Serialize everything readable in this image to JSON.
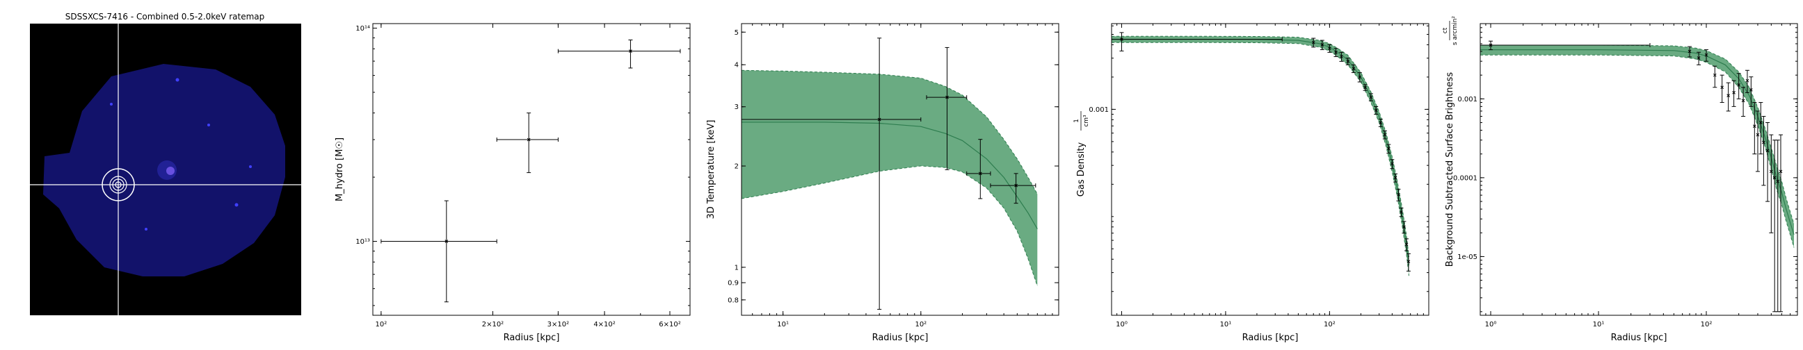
{
  "image_panel": {
    "title": "SDSSXCS-7416 - Combined 0.5-2.0keV ratemap",
    "colors": {
      "background": "#000000",
      "emission": "#1a1a7a",
      "crosshair": "#ffffff"
    }
  },
  "chart_data": [
    {
      "type": "scatter",
      "xlabel": "Radius [kpc]",
      "ylabel": "M_hydro [M☉]",
      "xscale": "log",
      "yscale": "log",
      "xlim": [
        95,
        680
      ],
      "ylim": [
        4500000000000.0,
        105000000000000.0
      ],
      "xticks": [
        {
          "v": 100,
          "label": "10²"
        },
        {
          "v": 200,
          "label": "2×10²"
        },
        {
          "v": 300,
          "label": "3×10²"
        },
        {
          "v": 400,
          "label": "4×10²"
        },
        {
          "v": 600,
          "label": "6×10²"
        }
      ],
      "yticks": [
        {
          "v": 10000000000000.0,
          "label": "10¹³"
        },
        {
          "v": 100000000000000.0,
          "label": "10¹⁴"
        }
      ],
      "points": [
        {
          "x": 150,
          "y": 10000000000000.0,
          "xerr": [
            100,
            205
          ],
          "yerr": [
            5200000000000.0,
            15500000000000.0
          ]
        },
        {
          "x": 250,
          "y": 30000000000000.0,
          "xerr": [
            205,
            300
          ],
          "yerr": [
            21000000000000.0,
            40000000000000.0
          ]
        },
        {
          "x": 470,
          "y": 78000000000000.0,
          "xerr": [
            300,
            640
          ],
          "yerr": [
            65000000000000.0,
            88000000000000.0
          ]
        }
      ]
    },
    {
      "type": "line",
      "xlabel": "Radius [kpc]",
      "ylabel": "3D Temperature [keV]",
      "xscale": "log",
      "yscale": "log",
      "xlim": [
        5,
        1000
      ],
      "ylim": [
        0.72,
        5.3
      ],
      "xticks": [
        {
          "v": 10,
          "label": "10¹"
        },
        {
          "v": 100,
          "label": "10²"
        }
      ],
      "yticks": [
        {
          "v": 0.8,
          "label": "0.8"
        },
        {
          "v": 0.9,
          "label": "0.9"
        },
        {
          "v": 1,
          "label": "1"
        },
        {
          "v": 2,
          "label": "2"
        },
        {
          "v": 3,
          "label": "3"
        },
        {
          "v": 4,
          "label": "4"
        },
        {
          "v": 5,
          "label": "5"
        }
      ],
      "model": {
        "x": [
          5,
          10,
          20,
          50,
          100,
          150,
          200,
          300,
          400,
          500,
          600,
          700
        ],
        "y": [
          2.7,
          2.7,
          2.7,
          2.68,
          2.62,
          2.5,
          2.38,
          2.1,
          1.85,
          1.62,
          1.45,
          1.3
        ],
        "lower": [
          1.6,
          1.68,
          1.78,
          1.93,
          2.0,
          1.98,
          1.92,
          1.72,
          1.5,
          1.28,
          1.06,
          0.88
        ],
        "upper": [
          3.85,
          3.83,
          3.8,
          3.75,
          3.65,
          3.45,
          3.25,
          2.8,
          2.4,
          2.1,
          1.85,
          1.65
        ]
      },
      "points": [
        {
          "x": 50,
          "y": 2.75,
          "xerr": [
            5,
            100
          ],
          "yerr": [
            0.75,
            4.8
          ]
        },
        {
          "x": 155,
          "y": 3.2,
          "xerr": [
            110,
            215
          ],
          "yerr": [
            1.95,
            4.5
          ]
        },
        {
          "x": 270,
          "y": 1.9,
          "xerr": [
            215,
            320
          ],
          "yerr": [
            1.6,
            2.4
          ]
        },
        {
          "x": 490,
          "y": 1.75,
          "xerr": [
            320,
            680
          ],
          "yerr": [
            1.55,
            1.9
          ]
        }
      ]
    },
    {
      "type": "line",
      "xlabel": "Radius [kpc]",
      "ylabel": "Gas Density",
      "ylabel_unit_num": "1",
      "ylabel_unit_den": "cm³",
      "xscale": "log",
      "yscale": "log",
      "xlim": [
        0.8,
        900
      ],
      "ylim": [
        1.2e-05,
        0.0063
      ],
      "xticks": [
        {
          "v": 1,
          "label": "10⁰"
        },
        {
          "v": 10,
          "label": "10¹"
        },
        {
          "v": 100,
          "label": "10²"
        }
      ],
      "yticks": [
        {
          "v": 0.001,
          "label": "0.001"
        }
      ],
      "model": {
        "x": [
          0.8,
          1,
          5,
          20,
          50,
          80,
          100,
          120,
          150,
          200,
          250,
          300,
          350,
          400,
          450,
          500,
          550,
          580
        ],
        "y": [
          0.0045,
          0.0045,
          0.0045,
          0.00448,
          0.0044,
          0.0041,
          0.0038,
          0.0034,
          0.0029,
          0.002,
          0.0013,
          0.00085,
          0.00052,
          0.00031,
          0.00018,
          0.0001,
          5.5e-05,
          3.5e-05
        ],
        "lower": [
          0.0042,
          0.0042,
          0.0042,
          0.00418,
          0.0041,
          0.0038,
          0.0035,
          0.0031,
          0.0026,
          0.0018,
          0.00115,
          0.00075,
          0.00045,
          0.00026,
          0.00015,
          8.2e-05,
          4.4e-05,
          2.8e-05
        ],
        "upper": [
          0.0048,
          0.0048,
          0.0048,
          0.00478,
          0.0047,
          0.0044,
          0.0041,
          0.0037,
          0.0032,
          0.0022,
          0.00145,
          0.00095,
          0.0006,
          0.00036,
          0.00021,
          0.00012,
          6.6e-05,
          4.2e-05
        ]
      },
      "points": [
        {
          "x": 1,
          "y": 0.0045,
          "xerr": [
            0.8,
            35
          ],
          "yerr": [
            0.0035,
            0.0052
          ]
        },
        {
          "x": 70,
          "y": 0.0042,
          "yerr": [
            0.0038,
            0.0046
          ]
        },
        {
          "x": 85,
          "y": 0.004,
          "yerr": [
            0.0036,
            0.0044
          ]
        },
        {
          "x": 100,
          "y": 0.0037,
          "yerr": [
            0.0034,
            0.004
          ]
        },
        {
          "x": 115,
          "y": 0.0034,
          "yerr": [
            0.0031,
            0.0037
          ]
        },
        {
          "x": 130,
          "y": 0.0031,
          "yerr": [
            0.0028,
            0.0034
          ]
        },
        {
          "x": 150,
          "y": 0.0028,
          "yerr": [
            0.0026,
            0.003
          ]
        },
        {
          "x": 170,
          "y": 0.0024,
          "yerr": [
            0.0022,
            0.0026
          ]
        },
        {
          "x": 195,
          "y": 0.002,
          "yerr": [
            0.0018,
            0.0022
          ]
        },
        {
          "x": 220,
          "y": 0.0016,
          "yerr": [
            0.0015,
            0.0017
          ]
        },
        {
          "x": 250,
          "y": 0.0013,
          "yerr": [
            0.0012,
            0.0014
          ]
        },
        {
          "x": 280,
          "y": 0.00098,
          "yerr": [
            0.0009,
            0.00106
          ]
        },
        {
          "x": 310,
          "y": 0.00075,
          "yerr": [
            0.00069,
            0.00081
          ]
        },
        {
          "x": 340,
          "y": 0.00058,
          "yerr": [
            0.00053,
            0.00063
          ]
        },
        {
          "x": 370,
          "y": 0.00043,
          "yerr": [
            0.00039,
            0.00047
          ]
        },
        {
          "x": 400,
          "y": 0.00031,
          "yerr": [
            0.00028,
            0.00034
          ]
        },
        {
          "x": 430,
          "y": 0.00023,
          "yerr": [
            0.00021,
            0.00025
          ]
        },
        {
          "x": 460,
          "y": 0.00016,
          "yerr": [
            0.00014,
            0.00018
          ]
        },
        {
          "x": 490,
          "y": 0.00011,
          "yerr": [
            0.0001,
            0.00012
          ]
        },
        {
          "x": 520,
          "y": 8e-05,
          "yerr": [
            7e-05,
            9e-05
          ]
        },
        {
          "x": 550,
          "y": 5.5e-05,
          "yerr": [
            4.8e-05,
            6.2e-05
          ]
        },
        {
          "x": 575,
          "y": 3.8e-05,
          "yerr": [
            3.1e-05,
            4.5e-05
          ]
        }
      ]
    },
    {
      "type": "line",
      "xlabel": "Radius [kpc]",
      "ylabel": "Background Subtracted Surface Brightness",
      "ylabel_unit_num": "ct",
      "ylabel_unit_den": "s arcmin²",
      "xscale": "log",
      "yscale": "log",
      "xlim": [
        0.8,
        700
      ],
      "ylim": [
        1.8e-06,
        0.009
      ],
      "xticks": [
        {
          "v": 1,
          "label": "10⁰"
        },
        {
          "v": 10,
          "label": "10¹"
        },
        {
          "v": 100,
          "label": "10²"
        }
      ],
      "yticks": [
        {
          "v": 0.001,
          "label": "0.001"
        },
        {
          "v": 0.0001,
          "label": "0.0001"
        },
        {
          "v": 1e-05,
          "label": "1e-05"
        }
      ],
      "model": {
        "x": [
          0.8,
          1,
          10,
          50,
          80,
          100,
          150,
          200,
          250,
          300,
          350,
          400,
          450,
          500,
          550,
          600,
          650
        ],
        "y": [
          0.0042,
          0.0042,
          0.0042,
          0.0041,
          0.0038,
          0.0035,
          0.0027,
          0.0018,
          0.0011,
          0.0006,
          0.00033,
          0.00018,
          0.0001,
          6.5e-05,
          4e-05,
          2.7e-05,
          1.9e-05
        ],
        "lower": [
          0.0036,
          0.0036,
          0.0036,
          0.0035,
          0.0032,
          0.0029,
          0.0022,
          0.0014,
          0.00085,
          0.00046,
          0.00025,
          0.00013,
          7e-05,
          4.5e-05,
          2.8e-05,
          1.9e-05,
          1.3e-05
        ],
        "upper": [
          0.0048,
          0.0048,
          0.0048,
          0.0047,
          0.0044,
          0.0041,
          0.0032,
          0.0022,
          0.0014,
          0.00078,
          0.00043,
          0.00024,
          0.00014,
          9e-05,
          5.5e-05,
          3.7e-05,
          2.6e-05
        ]
      },
      "points": [
        {
          "x": 1,
          "y": 0.0048,
          "xerr": [
            0.8,
            30
          ],
          "yerr": [
            0.0042,
            0.0054
          ]
        },
        {
          "x": 70,
          "y": 0.004,
          "yerr": [
            0.0034,
            0.0046
          ]
        },
        {
          "x": 85,
          "y": 0.0033,
          "yerr": [
            0.0027,
            0.0039
          ]
        },
        {
          "x": 100,
          "y": 0.0036,
          "yerr": [
            0.003,
            0.0042
          ]
        },
        {
          "x": 120,
          "y": 0.002,
          "yerr": [
            0.0014,
            0.0026
          ]
        },
        {
          "x": 140,
          "y": 0.0014,
          "yerr": [
            0.0009,
            0.002
          ]
        },
        {
          "x": 160,
          "y": 0.0011,
          "yerr": [
            0.0007,
            0.0016
          ]
        },
        {
          "x": 180,
          "y": 0.0012,
          "yerr": [
            0.0008,
            0.0017
          ]
        },
        {
          "x": 200,
          "y": 0.0015,
          "yerr": [
            0.001,
            0.0021
          ]
        },
        {
          "x": 220,
          "y": 0.00095,
          "yerr": [
            0.0006,
            0.0014
          ]
        },
        {
          "x": 240,
          "y": 0.0017,
          "yerr": [
            0.0012,
            0.0023
          ]
        },
        {
          "x": 260,
          "y": 0.0013,
          "yerr": [
            0.0008,
            0.0019
          ]
        },
        {
          "x": 280,
          "y": 0.00045,
          "yerr": [
            0.0002,
            0.0009
          ]
        },
        {
          "x": 300,
          "y": 0.00035,
          "yerr": [
            0.00012,
            0.0007
          ]
        },
        {
          "x": 320,
          "y": 0.0005,
          "yerr": [
            0.0002,
            0.0009
          ]
        },
        {
          "x": 340,
          "y": 0.00028,
          "yerr": [
            8e-05,
            0.0006
          ]
        },
        {
          "x": 370,
          "y": 0.00022,
          "yerr": [
            5e-05,
            0.0005
          ]
        },
        {
          "x": 400,
          "y": 0.00012,
          "yerr": [
            2e-05,
            0.00035
          ]
        },
        {
          "x": 430,
          "y": 0.0001,
          "yerr": [
            2e-06,
            0.0003
          ]
        },
        {
          "x": 460,
          "y": 9e-05,
          "yerr": [
            2e-06,
            0.0003
          ]
        },
        {
          "x": 490,
          "y": 0.00012,
          "yerr": [
            2e-06,
            0.00035
          ]
        }
      ]
    }
  ]
}
